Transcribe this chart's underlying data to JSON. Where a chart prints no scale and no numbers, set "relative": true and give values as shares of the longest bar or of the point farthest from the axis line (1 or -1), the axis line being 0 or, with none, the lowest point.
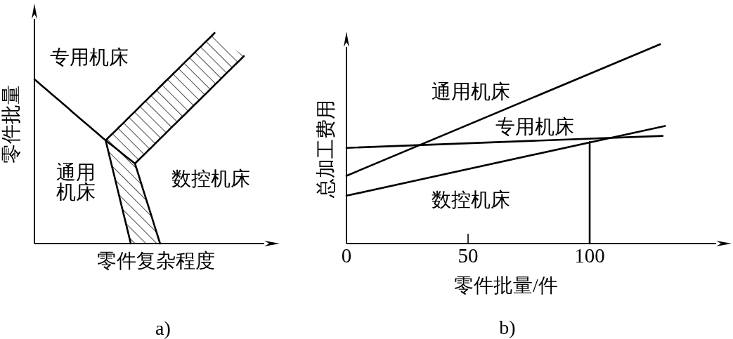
{
  "chart_data": [
    {
      "type": "line",
      "relative": true,
      "title": "a)",
      "xlabel": "零件复杂程度",
      "ylabel": "零件批量",
      "categories": [
        null,
        null,
        null,
        null,
        null,
        null,
        null,
        null,
        null,
        null,
        null,
        null,
        null,
        null,
        null,
        null,
        null,
        null,
        null,
        null,
        null,
        null,
        null,
        null,
        null,
        null,
        null,
        null,
        null,
        null,
        null,
        null,
        null,
        null,
        null,
        null,
        null,
        null,
        null,
        null,
        null,
        null,
        null,
        null,
        null,
        null,
        null,
        null,
        null,
        null,
        null
      ],
      "annotations": [
        "专用机床",
        "通用机床",
        "数控机床"
      ],
      "series": [
        {
          "color": "#000000",
          "values": [
            0.78,
            0.763,
            0.746,
            0.729,
            0.712,
            0.695,
            0.678,
            0.661,
            0.644,
            0.626,
            0.609,
            0.592,
            0.575,
            0.558,
            0.541,
            0.524,
            0.507,
            0.49,
            0.51,
            0.529,
            0.549,
            0.568,
            0.588,
            0.608,
            0.627,
            0.647,
            0.667,
            0.686,
            0.706,
            0.725,
            0.745,
            0.765,
            0.784,
            0.804,
            0.823,
            0.843,
            0.863,
            0.882,
            0.902,
            0.922,
            0.941,
            0.961,
            0.98,
            1,
            null,
            null,
            null,
            null,
            null,
            null,
            null
          ]
        },
        {
          "color": "#000000",
          "values": [
            null,
            null,
            null,
            null,
            null,
            null,
            null,
            null,
            null,
            null,
            null,
            null,
            null,
            null,
            null,
            null,
            null,
            0.49,
            0.474,
            0.459,
            0.443,
            0.427,
            0.411,
            0.396,
            0.38,
            0.4,
            0.419,
            0.439,
            0.458,
            0.478,
            0.498,
            0.517,
            0.537,
            0.557,
            0.576,
            0.596,
            0.615,
            0.635,
            0.655,
            0.674,
            0.694,
            0.713,
            0.733,
            0.753,
            0.772,
            0.792,
            0.812,
            0.831,
            0.851,
            0.87,
            0.89
          ]
        },
        {
          "color": "#000000",
          "values": [
            null,
            null,
            null,
            null,
            null,
            null,
            null,
            null,
            null,
            null,
            null,
            null,
            null,
            null,
            null,
            null,
            null,
            0.49,
            0.408,
            0.327,
            0.245,
            0.163,
            0.082,
            0,
            null,
            null,
            null,
            null,
            null,
            null,
            null,
            null,
            null,
            null,
            null,
            null,
            null,
            null,
            null,
            null,
            null,
            null,
            null,
            null,
            null,
            null,
            null,
            null,
            null,
            null,
            null
          ]
        },
        {
          "color": "#000000",
          "values": [
            null,
            null,
            null,
            null,
            null,
            null,
            null,
            null,
            null,
            null,
            null,
            null,
            null,
            null,
            null,
            null,
            null,
            null,
            null,
            null,
            null,
            null,
            null,
            null,
            0.38,
            0.317,
            0.253,
            0.19,
            0.127,
            0.063,
            0,
            null,
            null,
            null,
            null,
            null,
            null,
            null,
            null,
            null,
            null,
            null,
            null,
            null,
            null,
            null,
            null,
            null,
            null,
            null,
            null
          ]
        },
        {
          "color": "#000000",
          "values": [
            null,
            null,
            null,
            null,
            null,
            null,
            null,
            null,
            null,
            null,
            null,
            null,
            null,
            null,
            null,
            null,
            null,
            null,
            null,
            null,
            null,
            null,
            null,
            null,
            null,
            null,
            null,
            null,
            null,
            null,
            null,
            null,
            null,
            null,
            null,
            null,
            null,
            null,
            null,
            null,
            null,
            null,
            null,
            null,
            null,
            null,
            null,
            null,
            null,
            null,
            null
          ],
          "upper": [
            null,
            null,
            null,
            null,
            null,
            null,
            null,
            null,
            null,
            null,
            null,
            null,
            null,
            null,
            null,
            null,
            null,
            0.49,
            0.51,
            0.529,
            0.549,
            0.568,
            0.588,
            0.608,
            0.627,
            0.647,
            0.667,
            0.686,
            0.706,
            0.725,
            0.745,
            0.765,
            0.784,
            0.804,
            0.823,
            0.843,
            0.863,
            0.882,
            0.902,
            0.922,
            0.941,
            0.961,
            0.98,
            1,
            0.984,
            0.969,
            0.953,
            0.937,
            0.921,
            0.906,
            0.89
          ],
          "lower": [
            null,
            null,
            null,
            null,
            null,
            null,
            null,
            null,
            null,
            null,
            null,
            null,
            null,
            null,
            null,
            null,
            null,
            0.49,
            0.474,
            0.459,
            0.443,
            0.427,
            0.411,
            0.396,
            0.38,
            0.4,
            0.419,
            0.439,
            0.458,
            0.478,
            0.498,
            0.517,
            0.537,
            0.557,
            0.576,
            0.596,
            0.615,
            0.635,
            0.655,
            0.674,
            0.694,
            0.713,
            0.733,
            0.753,
            0.772,
            0.792,
            0.812,
            0.831,
            0.851,
            0.87,
            0.89
          ]
        },
        {
          "color": "#000000",
          "values": [
            null,
            null,
            null,
            null,
            null,
            null,
            null,
            null,
            null,
            null,
            null,
            null,
            null,
            null,
            null,
            null,
            null,
            null,
            null,
            null,
            null,
            null,
            null,
            null,
            null,
            null,
            null,
            null,
            null,
            null,
            null,
            null,
            null,
            null,
            null,
            null,
            null,
            null,
            null,
            null,
            null,
            null,
            null,
            null,
            null,
            null,
            null,
            null,
            null,
            null,
            null
          ],
          "upper": [
            null,
            null,
            null,
            null,
            null,
            null,
            null,
            null,
            null,
            null,
            null,
            null,
            null,
            null,
            null,
            null,
            null,
            0.49,
            0.474,
            0.459,
            0.443,
            0.427,
            0.411,
            0.396,
            0.38,
            0.317,
            0.253,
            0.19,
            0.127,
            0.063,
            0,
            null,
            null,
            null,
            null,
            null,
            null,
            null,
            null,
            null,
            null,
            null,
            null,
            null,
            null,
            null,
            null,
            null,
            null,
            null,
            null
          ],
          "lower": [
            null,
            null,
            null,
            null,
            null,
            null,
            null,
            null,
            null,
            null,
            null,
            null,
            null,
            null,
            null,
            null,
            null,
            0.49,
            0.408,
            0.327,
            0.245,
            0.163,
            0.082,
            0,
            0,
            0,
            0,
            0,
            0,
            0,
            0,
            null,
            null,
            null,
            null,
            null,
            null,
            null,
            null,
            null,
            null,
            null,
            null,
            null,
            null,
            null,
            null,
            null,
            null,
            null,
            null
          ]
        }
      ]
    },
    {
      "type": "line",
      "relative": true,
      "title": "b)",
      "xlabel": "零件批量/件",
      "ylabel": "总加工费用",
      "xlim": [
        0,
        152
      ],
      "xticks": [
        0,
        50,
        100
      ],
      "tick_labels": "x",
      "series": [
        {
          "name": "通用机床",
          "color": "#000000",
          "x": [
            0,
            129
          ],
          "values": [
            0.34,
            1
          ]
        },
        {
          "name": "专用机床",
          "color": "#000000",
          "x": [
            0,
            130
          ],
          "values": [
            0.48,
            0.54
          ]
        },
        {
          "name": "数控机床",
          "color": "#000000",
          "x": [
            0,
            131
          ],
          "values": [
            0.24,
            0.59
          ]
        },
        {
          "color": "#000000",
          "x": [
            100,
            100
          ],
          "values": [
            0,
            0.51
          ]
        }
      ]
    }
  ]
}
